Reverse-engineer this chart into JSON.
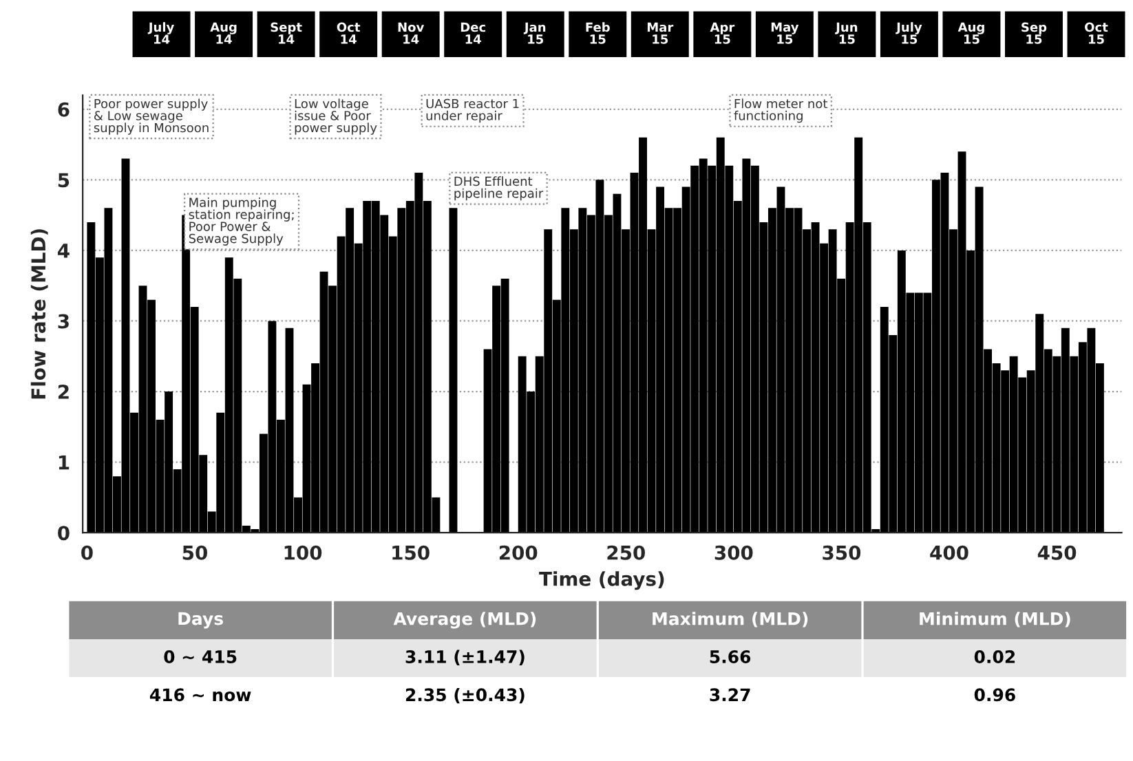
{
  "chart_data": {
    "type": "bar",
    "xlabel": "Time (days)",
    "ylabel": "Flow rate (MLD)",
    "x": [
      0,
      4,
      8,
      12,
      16,
      20,
      24,
      28,
      32,
      36,
      40,
      44,
      48,
      52,
      56,
      60,
      64,
      68,
      72,
      76,
      80,
      84,
      88,
      92,
      96,
      100,
      104,
      108,
      112,
      116,
      120,
      124,
      128,
      132,
      136,
      140,
      144,
      148,
      152,
      156,
      160,
      164,
      168,
      172,
      176,
      180,
      184,
      188,
      192,
      196,
      200,
      204,
      208,
      212,
      216,
      220,
      224,
      228,
      232,
      236,
      240,
      244,
      248,
      252,
      256,
      260,
      264,
      268,
      272,
      276,
      280,
      284,
      288,
      292,
      296,
      300,
      304,
      308,
      312,
      316,
      320,
      324,
      328,
      332,
      336,
      340,
      344,
      348,
      352,
      356,
      360,
      364,
      368,
      372,
      376,
      380,
      384,
      388,
      392,
      396,
      400,
      404,
      408,
      412,
      416,
      420,
      424,
      428,
      432,
      436,
      440,
      444,
      448,
      452,
      456,
      460,
      464,
      468
    ],
    "values": [
      4.4,
      3.9,
      4.6,
      0.8,
      5.3,
      1.7,
      3.5,
      3.3,
      1.6,
      2.0,
      0.9,
      4.5,
      3.2,
      1.1,
      0.3,
      1.7,
      3.9,
      3.6,
      0.1,
      0.05,
      1.4,
      3.0,
      1.6,
      2.9,
      0.5,
      2.1,
      2.4,
      3.7,
      3.5,
      4.2,
      4.6,
      4.1,
      4.7,
      4.7,
      4.5,
      4.2,
      4.6,
      4.7,
      5.1,
      4.7,
      0.5,
      0,
      4.6,
      0,
      0,
      0,
      2.6,
      3.5,
      3.6,
      0,
      2.5,
      2.0,
      2.5,
      4.3,
      3.3,
      4.6,
      4.3,
      4.6,
      4.5,
      5.0,
      4.5,
      4.8,
      4.3,
      5.1,
      5.6,
      4.3,
      4.9,
      4.6,
      4.6,
      4.9,
      5.2,
      5.3,
      5.2,
      5.6,
      5.2,
      4.7,
      5.3,
      5.2,
      4.4,
      4.6,
      4.9,
      4.6,
      4.6,
      4.3,
      4.4,
      4.1,
      4.3,
      3.6,
      4.4,
      5.6,
      4.4,
      0.05,
      3.2,
      2.8,
      4.0,
      3.4,
      3.4,
      3.4,
      5.0,
      5.1,
      4.3,
      5.4,
      4.0,
      4.9,
      2.6,
      2.4,
      2.3,
      2.5,
      2.2,
      2.3,
      3.1,
      2.6,
      2.5,
      2.9,
      2.5,
      2.7,
      2.9,
      2.4
    ],
    "color": "#000000",
    "xlim": [
      -2,
      480
    ],
    "xticks": [
      0,
      50,
      100,
      150,
      200,
      250,
      300,
      350,
      400,
      450
    ],
    "ylim": [
      0,
      6.2
    ],
    "yticks": [
      0,
      1,
      2,
      3,
      4,
      5,
      6
    ],
    "grid": "y",
    "annotations": [
      "Poor power supply\n& Low sewage\nsupply in Monsoon",
      "Main pumping\nstation repairing;\nPoor Power &\nSewage Supply",
      "Low voltage\nissue & Poor\npower supply",
      "UASB reactor 1\nunder repair",
      "DHS Effluent\npipeline repair",
      "Flow meter not\nfunctioning",
      "July\n14",
      "Aug\n14",
      "Sept\n14",
      "Oct\n14",
      "Nov\n14",
      "Dec\n14",
      "Jan\n15",
      "Feb\n15",
      "Mar\n15",
      "Apr\n15",
      "May\n15",
      "Jun\n15",
      "July\n15",
      "Aug\n15",
      "Sep\n15",
      "Oct\n15",
      "Days",
      "Average (MLD)",
      "Maximum (MLD)",
      "Minimum (MLD)",
      "0 ~ 415",
      "3.11 (±1.47)",
      "5.66",
      "0.02",
      "416 ~ now",
      "2.35 (±0.43)",
      "3.27",
      "0.96"
    ]
  }
}
